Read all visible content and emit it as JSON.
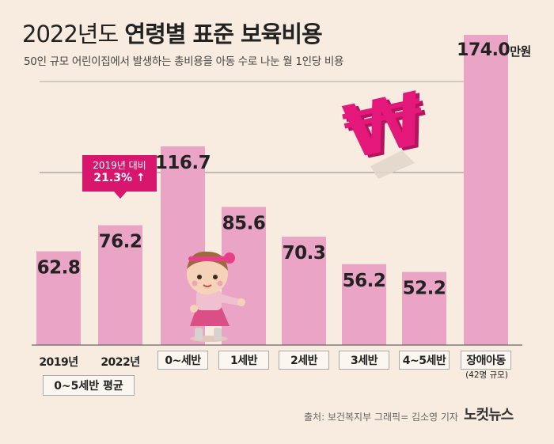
{
  "title": {
    "year": "2022년도",
    "main": "연령별 표준 보육비용"
  },
  "subtitle": "50인 규모 어린이집에서 발생하는 총비용을 아동 수로 나눈 월 1인당 비용",
  "chart_data": {
    "type": "bar",
    "title": "2022년도 연령별 표준 보육비용",
    "subtitle": "50인 규모 어린이집에서 발생하는 총비용을 아동 수로 나눈 월 1인당 비용",
    "categories": [
      "2019년",
      "2022년",
      "0~세반",
      "1세반",
      "2세반",
      "3세반",
      "4~5세반",
      "장애아동"
    ],
    "values": [
      62.8,
      76.2,
      116.7,
      85.6,
      70.3,
      56.2,
      52.2,
      174.0
    ],
    "value_labels": [
      "62.8",
      "76.2",
      "116.7",
      "85.6",
      "70.3",
      "56.2",
      "52.2",
      "174.0"
    ],
    "unit": "만원",
    "ylim": [
      0,
      180
    ],
    "group_label": "0~5세반 평균",
    "last_category_note": "(42명 규모)",
    "annotation": {
      "line1": "2019년 대비",
      "line2": "21.3% ↑"
    },
    "bar_color": "#eaa4c6",
    "accent_color": "#d8166e"
  },
  "source": "출처: 보건복지부   그래픽= 김소영 기자",
  "logo": "노컷뉴스"
}
